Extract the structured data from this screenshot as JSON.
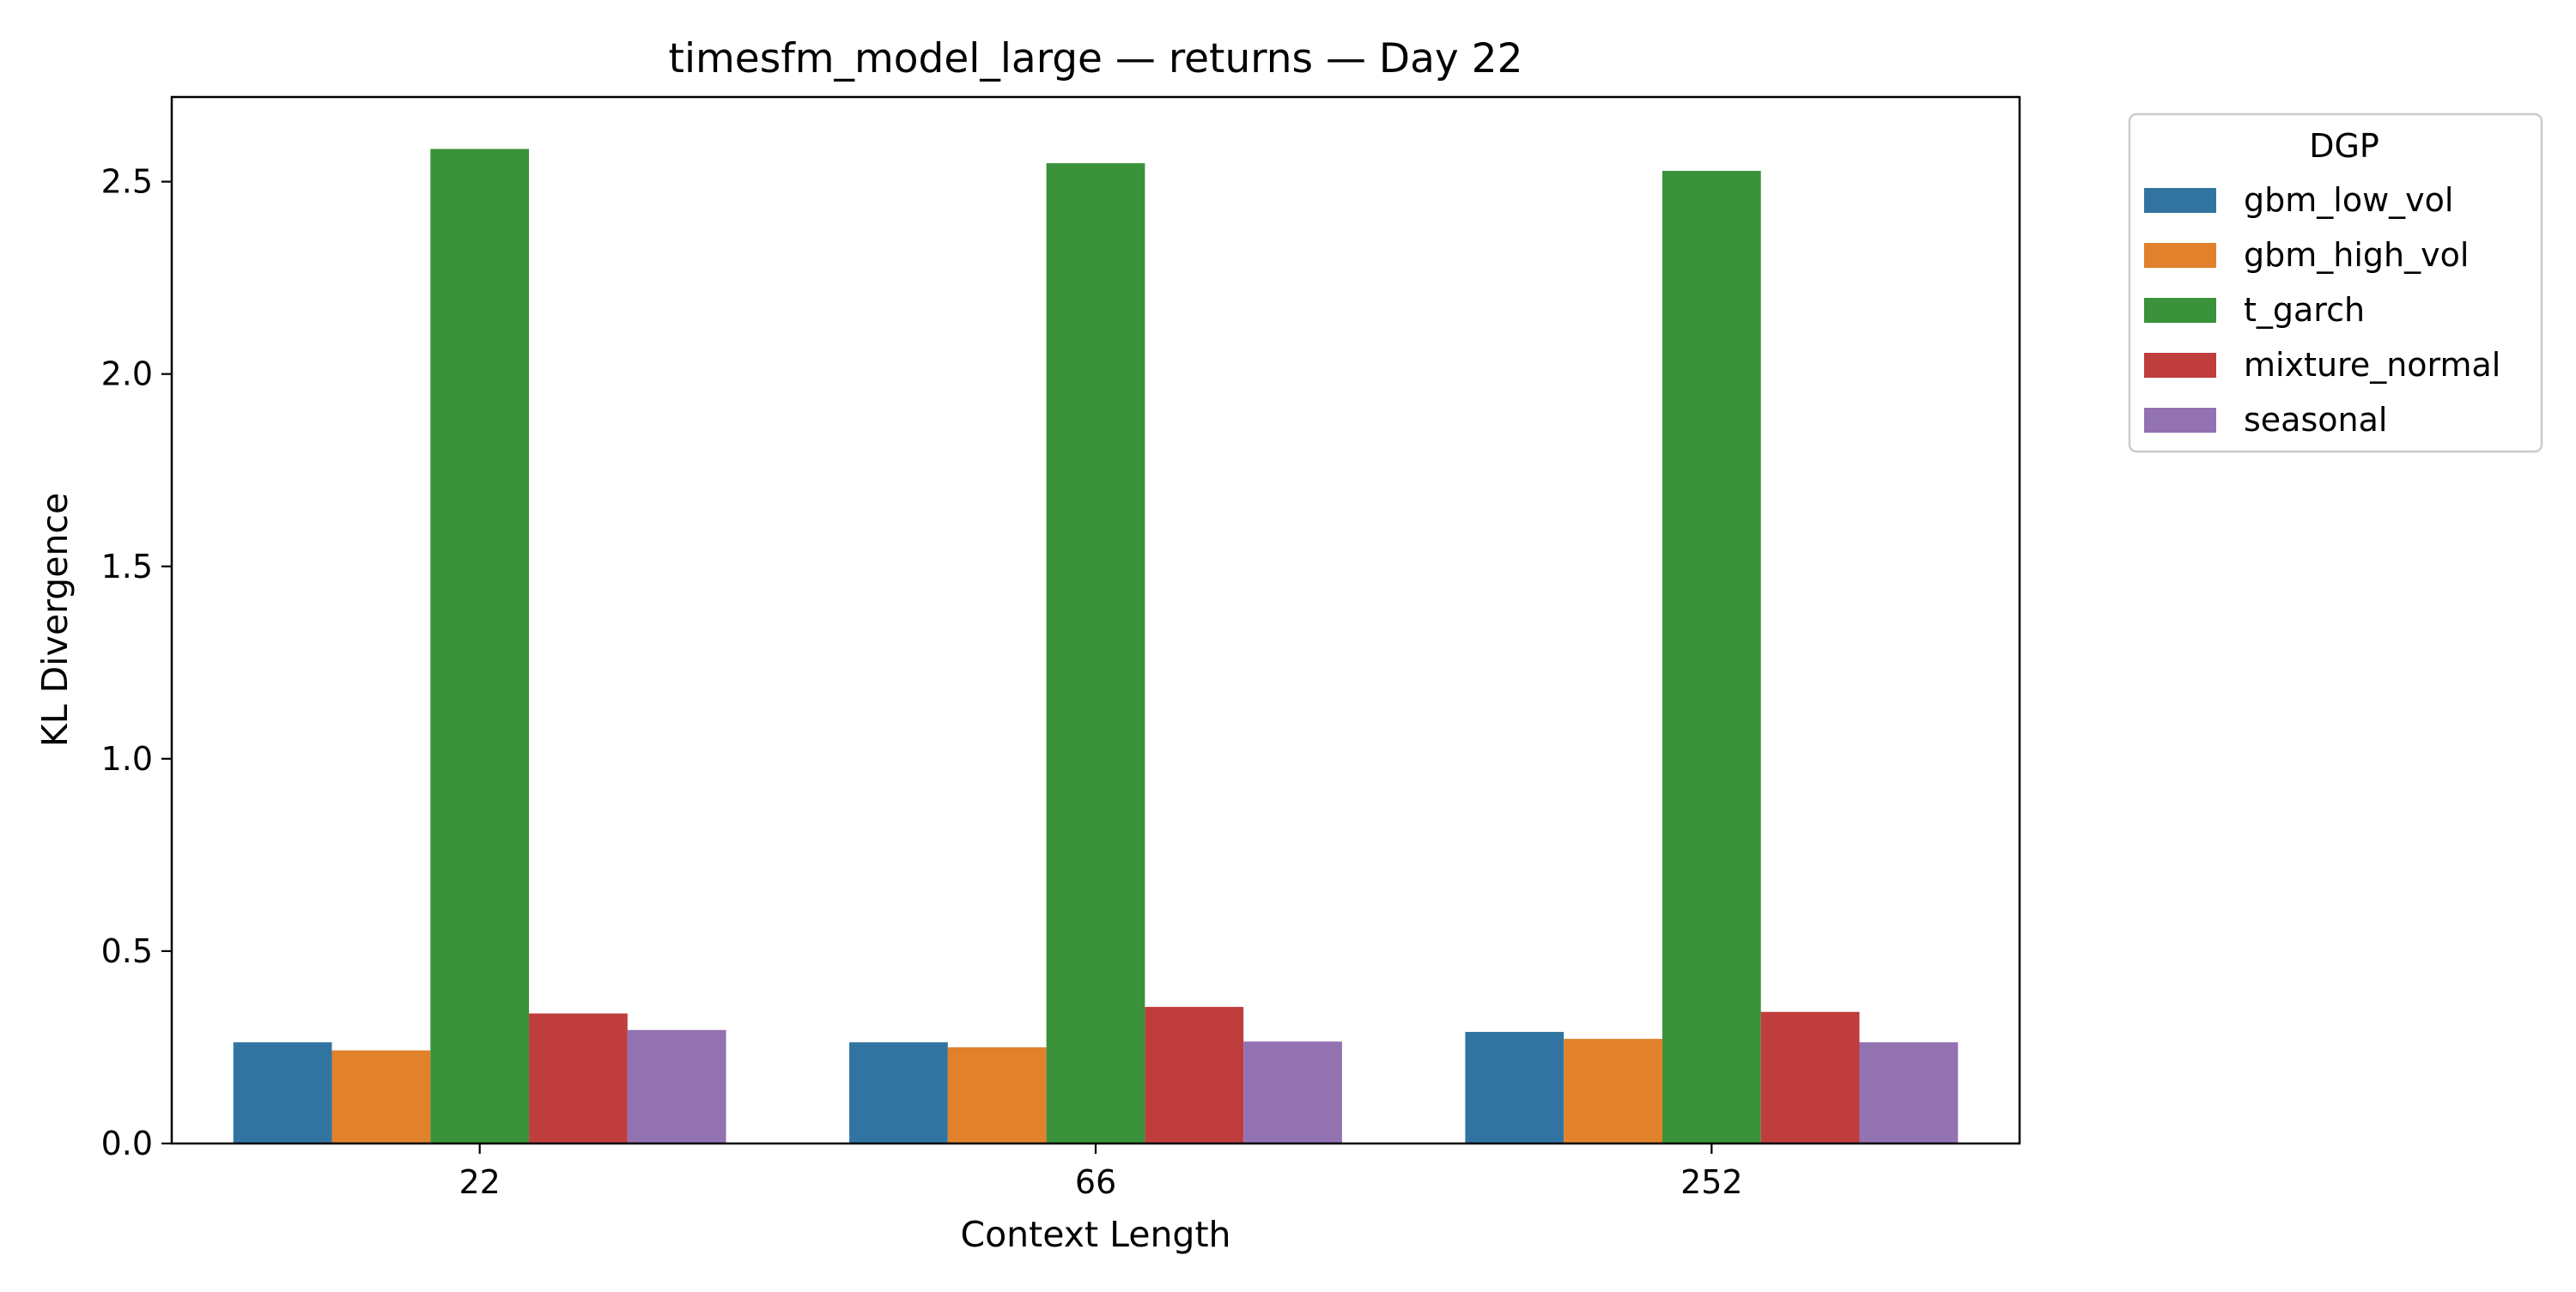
{
  "chart_data": {
    "type": "bar",
    "title": "timesfm_model_large — returns — Day 22",
    "xlabel": "Context Length",
    "ylabel": "KL Divergence",
    "categories": [
      "22",
      "66",
      "252"
    ],
    "ylim": [
      0,
      2.72
    ],
    "yticks": [
      0.0,
      0.5,
      1.0,
      1.5,
      2.0,
      2.5
    ],
    "ytick_labels": [
      "0.0",
      "0.5",
      "1.0",
      "1.5",
      "2.0",
      "2.5"
    ],
    "grid": false,
    "legend": {
      "title": "DGP",
      "placement": "outside-upper-right"
    },
    "series": [
      {
        "name": "gbm_low_vol",
        "color": "#3274a1",
        "values": [
          0.263,
          0.263,
          0.29
        ]
      },
      {
        "name": "gbm_high_vol",
        "color": "#e1812c",
        "values": [
          0.242,
          0.25,
          0.272
        ]
      },
      {
        "name": "t_garch",
        "color": "#3a923a",
        "values": [
          2.585,
          2.548,
          2.528
        ]
      },
      {
        "name": "mixture_normal",
        "color": "#c03d3e",
        "values": [
          0.338,
          0.355,
          0.342
        ]
      },
      {
        "name": "seasonal",
        "color": "#9372b2",
        "values": [
          0.295,
          0.265,
          0.263
        ]
      }
    ]
  }
}
